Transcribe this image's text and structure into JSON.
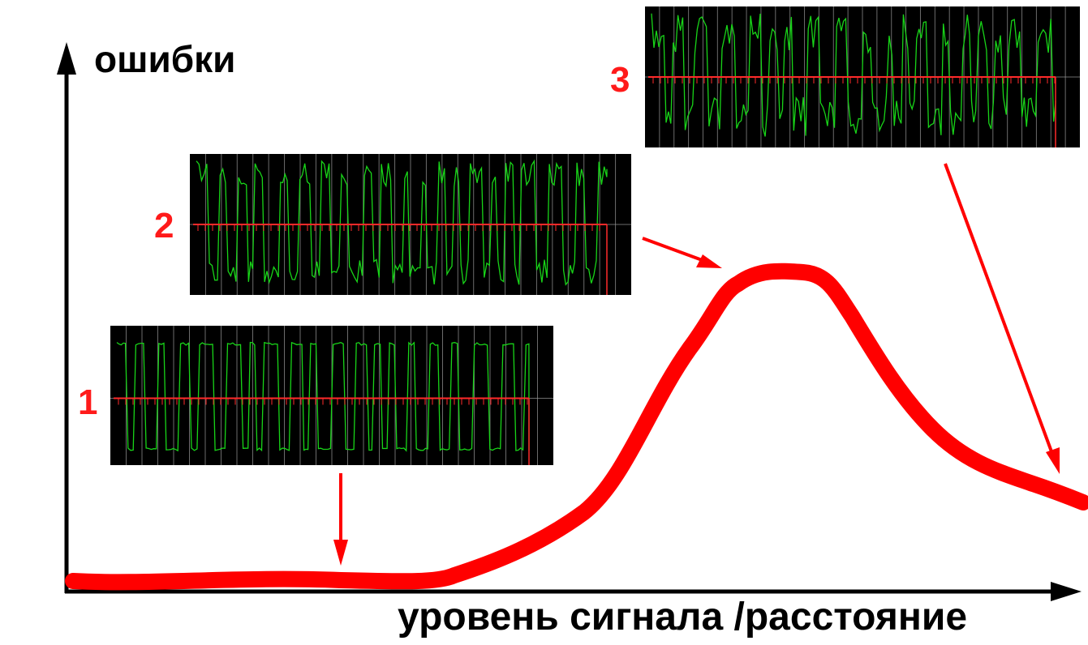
{
  "axes": {
    "y_label": "ошибки",
    "x_label": "уровень сигнала /расстояние"
  },
  "snapshots": [
    {
      "number": "1",
      "kind": "clean"
    },
    {
      "number": "2",
      "kind": "noisy"
    },
    {
      "number": "3",
      "kind": "very-noisy"
    }
  ],
  "colors": {
    "curve": "#ff0000",
    "axis": "#000000",
    "scope_background": "#000000",
    "scope_grid": "#9a9a9a",
    "scope_signal": "#18d418",
    "scope_marker": "#ff2a2a",
    "label_number": "#ff1a1a"
  }
}
